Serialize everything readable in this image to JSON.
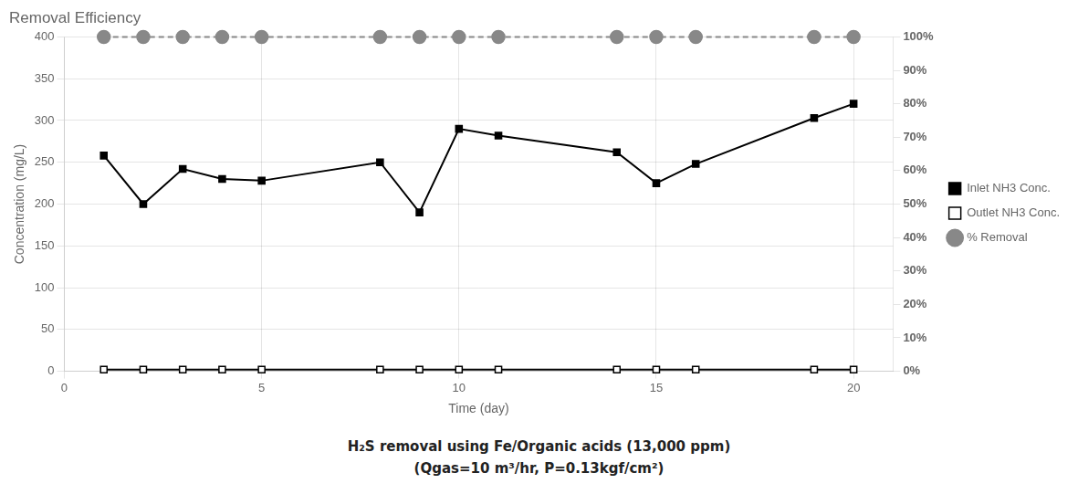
{
  "chart_data": {
    "type": "line",
    "title": "Removal Efficiency",
    "xlabel": "Time (day)",
    "ylabel": "Concentration (mg/L)",
    "x": [
      1,
      2,
      3,
      4,
      5,
      8,
      9,
      10,
      11,
      14,
      15,
      16,
      19,
      20
    ],
    "series": [
      {
        "name": "Inlet NH3 Conc.",
        "color": "#000000",
        "marker": "filled_square",
        "line_style": "solid",
        "values": [
          258,
          200,
          242,
          230,
          228,
          250,
          190,
          290,
          282,
          262,
          225,
          248,
          303,
          320
        ]
      },
      {
        "name": "Outlet NH3 Conc.",
        "color": "#000000",
        "marker": "open_square",
        "line_style": "solid",
        "values": [
          2,
          2,
          2,
          2,
          2,
          2,
          2,
          2,
          2,
          2,
          2,
          2,
          2,
          2
        ]
      },
      {
        "name": "% Removal",
        "color": "#888888",
        "marker": "circle",
        "line_style": "dashed",
        "axis": "y2",
        "values": [
          100,
          100,
          100,
          100,
          100,
          100,
          100,
          100,
          100,
          100,
          100,
          100,
          100,
          100
        ]
      }
    ],
    "xlim": [
      0,
      21
    ],
    "xticks": [
      0,
      5,
      10,
      15,
      20
    ],
    "ylim": [
      0,
      400
    ],
    "yticks": [
      0,
      50,
      100,
      150,
      200,
      250,
      300,
      350,
      400
    ],
    "y2lim": [
      0,
      100
    ],
    "y2ticks": [
      {
        "value": 0,
        "label": "0%"
      },
      {
        "value": 10,
        "label": "10%"
      },
      {
        "value": 20,
        "label": "20%"
      },
      {
        "value": 30,
        "label": "30%"
      },
      {
        "value": 40,
        "label": "40%"
      },
      {
        "value": 50,
        "label": "50%"
      },
      {
        "value": 60,
        "label": "60%"
      },
      {
        "value": 70,
        "label": "70%"
      },
      {
        "value": 80,
        "label": "80%"
      },
      {
        "value": 90,
        "label": "90%"
      },
      {
        "value": 100,
        "label": "100%"
      }
    ],
    "grid": true,
    "legend": "right",
    "annotations": [
      "H₂S removal using Fe/Organic acids (13,000 ppm)",
      "(Qgas=10 m³/hr, P=0.13kgf/cm²)"
    ]
  }
}
